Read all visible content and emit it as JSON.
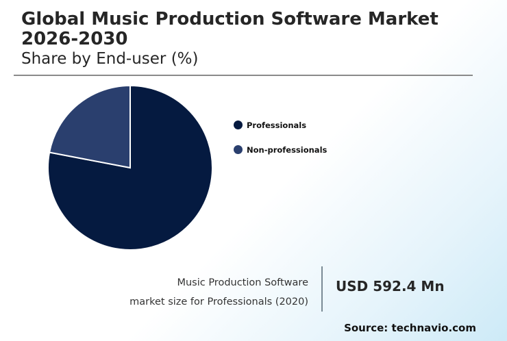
{
  "header": {
    "title": "Global Music Production Software Market 2026-2030",
    "subtitle": "Share by End-user (%)"
  },
  "chart_data": {
    "type": "pie",
    "categories": [
      "Professionals",
      "Non-professionals"
    ],
    "values": [
      78,
      22
    ],
    "colors": [
      "#051a40",
      "#2a3f6e"
    ],
    "legend_position": "right"
  },
  "stat": {
    "description_line1": "Music Production Software",
    "description_line2": "market size for Professionals (2020)",
    "value": "USD 592.4 Mn"
  },
  "footer": {
    "source": "Source: technavio.com"
  }
}
